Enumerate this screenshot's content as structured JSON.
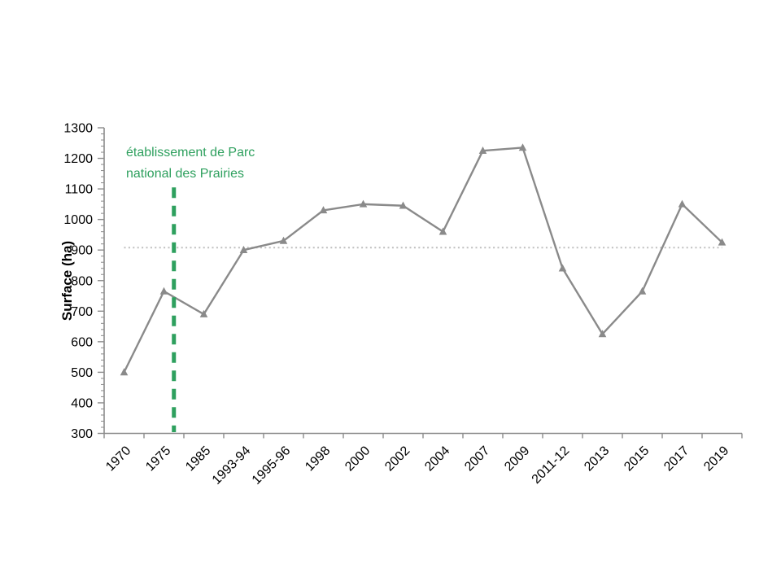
{
  "page": {
    "background_color": "#ffffff"
  },
  "chart_data": {
    "type": "line",
    "title": "",
    "xlabel": "",
    "ylabel": "Surface (ha)",
    "ylim": [
      300,
      1300
    ],
    "ytick_step": 100,
    "yminor_step": 20,
    "grid": false,
    "legend": false,
    "axis_color": "#8c8c8c",
    "text_color": "#000000",
    "categories": [
      "1970",
      "1975",
      "1985",
      "1993-94",
      "1995-96",
      "1998",
      "2000",
      "2002",
      "2004",
      "2007",
      "2009",
      "2011-12",
      "2013",
      "2015",
      "2017",
      "2019"
    ],
    "series": [
      {
        "name": "Surface (ha)",
        "color": "#8a8a8a",
        "marker": "triangle",
        "values": [
          500,
          765,
          690,
          900,
          930,
          1030,
          1050,
          1045,
          960,
          1225,
          1235,
          840,
          625,
          765,
          1050,
          925
        ]
      }
    ],
    "reference_line": {
      "value": 908,
      "color": "#bfbfbf",
      "style": "dotted"
    },
    "annotation": {
      "text_lines": [
        "établissement de Parc",
        "national des Prairies"
      ],
      "color": "#2ea05e",
      "line_x_index": 1.25,
      "line_top_value": 1105,
      "line_style": "dashed-vertical"
    }
  }
}
